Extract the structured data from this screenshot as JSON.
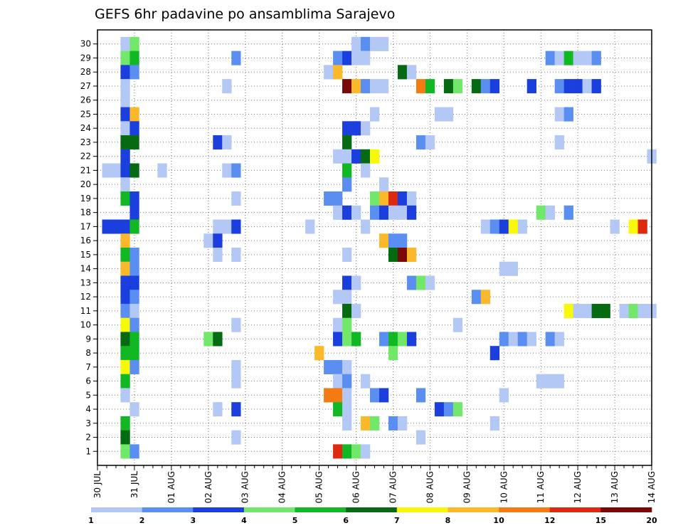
{
  "chart_data": {
    "type": "heatmap",
    "title": "GEFS 6hr padavine po ansamblima Sarajevo",
    "y_categories": [
      "1",
      "2",
      "3",
      "4",
      "5",
      "6",
      "7",
      "8",
      "9",
      "10",
      "11",
      "12",
      "13",
      "14",
      "15",
      "16",
      "17",
      "18",
      "19",
      "20",
      "21",
      "22",
      "23",
      "24",
      "25",
      "26",
      "27",
      "28",
      "29",
      "30"
    ],
    "x_labels": [
      "30 JUL",
      "31 JUL",
      "01 AUG",
      "02 AUG",
      "03 AUG",
      "04 AUG",
      "05 AUG",
      "06 AUG",
      "07 AUG",
      "08 AUG",
      "09 AUG",
      "10 AUG",
      "11 AUG",
      "12 AUG",
      "13 AUG",
      "14 AUG"
    ],
    "x_range_steps": [
      0,
      60
    ],
    "x_unit": "6-hour step from 30 JUL",
    "grid": true,
    "colorbar": {
      "bounds": [
        1,
        2,
        3,
        4,
        5,
        6,
        7,
        8,
        10,
        12,
        15,
        20
      ],
      "labels": [
        "1",
        "2",
        "3",
        "4",
        "5",
        "6",
        "7",
        "8",
        "10",
        "12",
        "15",
        "20"
      ],
      "colors": [
        "#b4c8f5",
        "#5a8ef0",
        "#1a3fdc",
        "#72e86a",
        "#12b824",
        "#066a12",
        "#f8f80a",
        "#fab82a",
        "#f47a14",
        "#dc2a10",
        "#7a0808"
      ]
    },
    "cells": [
      [
        3,
        30,
        1
      ],
      [
        4,
        30,
        4
      ],
      [
        28,
        30,
        1
      ],
      [
        29,
        30,
        2
      ],
      [
        30,
        30,
        1
      ],
      [
        31,
        30,
        1
      ],
      [
        3,
        29,
        4
      ],
      [
        4,
        29,
        5
      ],
      [
        15,
        29,
        2
      ],
      [
        26,
        29,
        2
      ],
      [
        27,
        29,
        3
      ],
      [
        28,
        29,
        1
      ],
      [
        29,
        29,
        1
      ],
      [
        49,
        29,
        2
      ],
      [
        50,
        29,
        1
      ],
      [
        51,
        29,
        5
      ],
      [
        52,
        29,
        1
      ],
      [
        53,
        29,
        1
      ],
      [
        54,
        29,
        2
      ],
      [
        3,
        28,
        3
      ],
      [
        4,
        28,
        2
      ],
      [
        25,
        28,
        1
      ],
      [
        26,
        28,
        8
      ],
      [
        33,
        28,
        6
      ],
      [
        34,
        28,
        1
      ],
      [
        3,
        27,
        1
      ],
      [
        14,
        27,
        1
      ],
      [
        27,
        27,
        11
      ],
      [
        28,
        27,
        8
      ],
      [
        29,
        27,
        2
      ],
      [
        30,
        27,
        1
      ],
      [
        31,
        27,
        1
      ],
      [
        35,
        27,
        9
      ],
      [
        36,
        27,
        5
      ],
      [
        38,
        27,
        6
      ],
      [
        39,
        27,
        4
      ],
      [
        41,
        27,
        6
      ],
      [
        42,
        27,
        2
      ],
      [
        43,
        27,
        3
      ],
      [
        47,
        27,
        3
      ],
      [
        50,
        27,
        2
      ],
      [
        51,
        27,
        3
      ],
      [
        52,
        27,
        3
      ],
      [
        53,
        27,
        1
      ],
      [
        54,
        27,
        3
      ],
      [
        3,
        26,
        1
      ],
      [
        3,
        25,
        3
      ],
      [
        4,
        25,
        8
      ],
      [
        30,
        25,
        1
      ],
      [
        37,
        25,
        1
      ],
      [
        38,
        25,
        1
      ],
      [
        50,
        25,
        1
      ],
      [
        51,
        25,
        2
      ],
      [
        3,
        24,
        1
      ],
      [
        4,
        24,
        3
      ],
      [
        27,
        24,
        3
      ],
      [
        28,
        24,
        3
      ],
      [
        29,
        24,
        1
      ],
      [
        3,
        23,
        6
      ],
      [
        4,
        23,
        6
      ],
      [
        13,
        23,
        3
      ],
      [
        14,
        23,
        1
      ],
      [
        27,
        23,
        6
      ],
      [
        35,
        23,
        2
      ],
      [
        36,
        23,
        1
      ],
      [
        50,
        23,
        1
      ],
      [
        3,
        22,
        3
      ],
      [
        26,
        22,
        1
      ],
      [
        27,
        22,
        1
      ],
      [
        28,
        22,
        3
      ],
      [
        29,
        22,
        6
      ],
      [
        30,
        22,
        7
      ],
      [
        60,
        22,
        1
      ],
      [
        1,
        21,
        1
      ],
      [
        2,
        21,
        1
      ],
      [
        3,
        21,
        3
      ],
      [
        4,
        21,
        6
      ],
      [
        7,
        21,
        1
      ],
      [
        14,
        21,
        1
      ],
      [
        15,
        21,
        2
      ],
      [
        27,
        21,
        5
      ],
      [
        29,
        21,
        1
      ],
      [
        3,
        20,
        1
      ],
      [
        27,
        20,
        2
      ],
      [
        31,
        20,
        1
      ],
      [
        3,
        19,
        5
      ],
      [
        4,
        19,
        3
      ],
      [
        15,
        19,
        1
      ],
      [
        25,
        19,
        2
      ],
      [
        26,
        19,
        2
      ],
      [
        30,
        19,
        4
      ],
      [
        31,
        19,
        8
      ],
      [
        32,
        19,
        10
      ],
      [
        33,
        19,
        3
      ],
      [
        34,
        19,
        1
      ],
      [
        4,
        18,
        3
      ],
      [
        26,
        18,
        1
      ],
      [
        27,
        18,
        3
      ],
      [
        28,
        18,
        1
      ],
      [
        30,
        18,
        2
      ],
      [
        31,
        18,
        3
      ],
      [
        32,
        18,
        1
      ],
      [
        33,
        18,
        1
      ],
      [
        34,
        18,
        3
      ],
      [
        48,
        18,
        4
      ],
      [
        49,
        18,
        1
      ],
      [
        51,
        18,
        2
      ],
      [
        1,
        17,
        3
      ],
      [
        2,
        17,
        3
      ],
      [
        3,
        17,
        3
      ],
      [
        4,
        17,
        5
      ],
      [
        13,
        17,
        1
      ],
      [
        14,
        17,
        1
      ],
      [
        15,
        17,
        3
      ],
      [
        23,
        17,
        1
      ],
      [
        29,
        17,
        1
      ],
      [
        42,
        17,
        1
      ],
      [
        43,
        17,
        2
      ],
      [
        44,
        17,
        3
      ],
      [
        45,
        17,
        7
      ],
      [
        46,
        17,
        1
      ],
      [
        56,
        17,
        1
      ],
      [
        58,
        17,
        7
      ],
      [
        59,
        17,
        10
      ],
      [
        3,
        16,
        8
      ],
      [
        12,
        16,
        1
      ],
      [
        13,
        16,
        3
      ],
      [
        31,
        16,
        8
      ],
      [
        32,
        16,
        2
      ],
      [
        33,
        16,
        2
      ],
      [
        3,
        15,
        5
      ],
      [
        4,
        15,
        2
      ],
      [
        13,
        15,
        1
      ],
      [
        15,
        15,
        1
      ],
      [
        27,
        15,
        1
      ],
      [
        32,
        15,
        6
      ],
      [
        33,
        15,
        11
      ],
      [
        34,
        15,
        8
      ],
      [
        3,
        14,
        8
      ],
      [
        4,
        14,
        2
      ],
      [
        44,
        14,
        1
      ],
      [
        45,
        14,
        1
      ],
      [
        3,
        13,
        3
      ],
      [
        4,
        13,
        3
      ],
      [
        27,
        13,
        3
      ],
      [
        28,
        13,
        1
      ],
      [
        34,
        13,
        2
      ],
      [
        35,
        13,
        4
      ],
      [
        36,
        13,
        1
      ],
      [
        3,
        12,
        3
      ],
      [
        4,
        12,
        2
      ],
      [
        26,
        12,
        1
      ],
      [
        27,
        12,
        1
      ],
      [
        41,
        12,
        2
      ],
      [
        42,
        12,
        8
      ],
      [
        3,
        11,
        2
      ],
      [
        4,
        11,
        1
      ],
      [
        27,
        11,
        6
      ],
      [
        28,
        11,
        1
      ],
      [
        51,
        11,
        7
      ],
      [
        52,
        11,
        1
      ],
      [
        53,
        11,
        1
      ],
      [
        54,
        11,
        6
      ],
      [
        55,
        11,
        6
      ],
      [
        57,
        11,
        1
      ],
      [
        58,
        11,
        4
      ],
      [
        59,
        11,
        1
      ],
      [
        60,
        11,
        1
      ],
      [
        3,
        10,
        7
      ],
      [
        4,
        10,
        2
      ],
      [
        15,
        10,
        1
      ],
      [
        26,
        10,
        1
      ],
      [
        27,
        10,
        4
      ],
      [
        39,
        10,
        1
      ],
      [
        3,
        9,
        6
      ],
      [
        4,
        9,
        5
      ],
      [
        12,
        9,
        4
      ],
      [
        13,
        9,
        6
      ],
      [
        26,
        9,
        3
      ],
      [
        27,
        9,
        4
      ],
      [
        28,
        9,
        5
      ],
      [
        31,
        9,
        2
      ],
      [
        32,
        9,
        5
      ],
      [
        33,
        9,
        4
      ],
      [
        34,
        9,
        3
      ],
      [
        44,
        9,
        2
      ],
      [
        45,
        9,
        1
      ],
      [
        46,
        9,
        2
      ],
      [
        47,
        9,
        1
      ],
      [
        49,
        9,
        2
      ],
      [
        50,
        9,
        1
      ],
      [
        3,
        8,
        5
      ],
      [
        4,
        8,
        5
      ],
      [
        24,
        8,
        8
      ],
      [
        32,
        8,
        4
      ],
      [
        43,
        8,
        3
      ],
      [
        3,
        7,
        7
      ],
      [
        4,
        7,
        2
      ],
      [
        15,
        7,
        1
      ],
      [
        25,
        7,
        2
      ],
      [
        26,
        7,
        2
      ],
      [
        27,
        7,
        1
      ],
      [
        3,
        6,
        5
      ],
      [
        15,
        6,
        1
      ],
      [
        26,
        6,
        1
      ],
      [
        27,
        6,
        2
      ],
      [
        29,
        6,
        1
      ],
      [
        48,
        6,
        1
      ],
      [
        49,
        6,
        1
      ],
      [
        50,
        6,
        1
      ],
      [
        3,
        5,
        1
      ],
      [
        25,
        5,
        9
      ],
      [
        26,
        5,
        9
      ],
      [
        27,
        5,
        1
      ],
      [
        30,
        5,
        2
      ],
      [
        31,
        5,
        3
      ],
      [
        35,
        5,
        2
      ],
      [
        44,
        5,
        1
      ],
      [
        4,
        4,
        1
      ],
      [
        13,
        4,
        1
      ],
      [
        15,
        4,
        3
      ],
      [
        26,
        4,
        5
      ],
      [
        27,
        4,
        1
      ],
      [
        37,
        4,
        3
      ],
      [
        38,
        4,
        2
      ],
      [
        39,
        4,
        4
      ],
      [
        3,
        3,
        5
      ],
      [
        27,
        3,
        1
      ],
      [
        29,
        3,
        8
      ],
      [
        30,
        3,
        4
      ],
      [
        32,
        3,
        2
      ],
      [
        33,
        3,
        1
      ],
      [
        43,
        3,
        1
      ],
      [
        3,
        2,
        6
      ],
      [
        15,
        2,
        1
      ],
      [
        35,
        2,
        1
      ],
      [
        3,
        1,
        4
      ],
      [
        4,
        1,
        2
      ],
      [
        26,
        1,
        10
      ],
      [
        27,
        1,
        5
      ],
      [
        28,
        1,
        4
      ],
      [
        29,
        1,
        1
      ]
    ]
  }
}
